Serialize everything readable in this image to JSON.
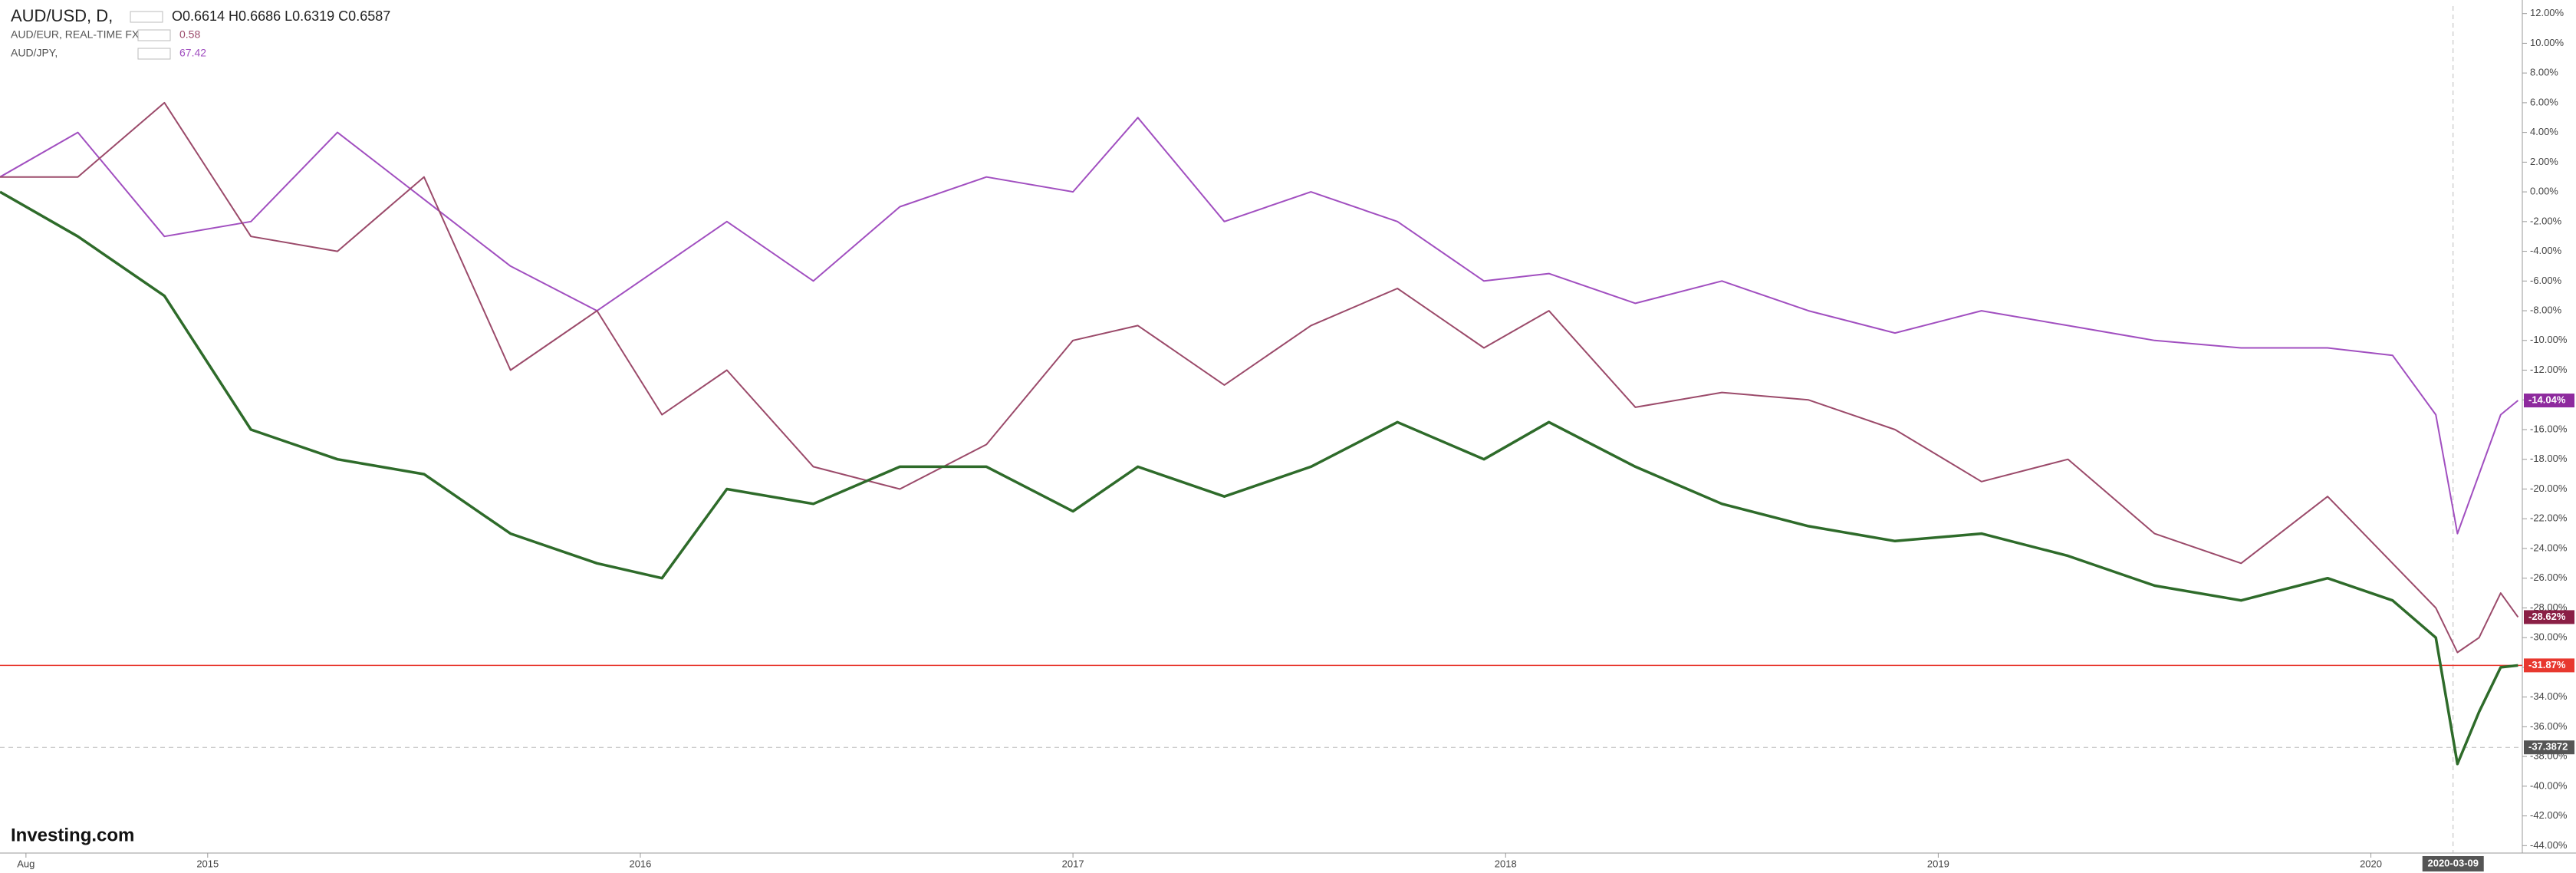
{
  "chart_data": {
    "type": "line",
    "x": [
      2014.52,
      2014.7,
      2014.9,
      2015.1,
      2015.3,
      2015.5,
      2015.7,
      2015.9,
      2016.05,
      2016.2,
      2016.4,
      2016.6,
      2016.8,
      2017.0,
      2017.15,
      2017.35,
      2017.55,
      2017.75,
      2017.95,
      2018.1,
      2018.3,
      2018.5,
      2018.7,
      2018.9,
      2019.1,
      2019.3,
      2019.5,
      2019.7,
      2019.9,
      2020.05,
      2020.15,
      2020.2,
      2020.25,
      2020.3,
      2020.34
    ],
    "series": [
      {
        "name": "AUD/USD, D,",
        "info": "O0.6614 H0.6686 L0.6319 C0.6587",
        "color": "#2e6b2a",
        "values": [
          0,
          -3,
          -7,
          -16,
          -18,
          -19,
          -23,
          -25,
          -26,
          -20,
          -21,
          -18.5,
          -18.5,
          -21.5,
          -18.5,
          -20.5,
          -18.5,
          -15.5,
          -18,
          -15.5,
          -18.5,
          -21,
          -22.5,
          -23.5,
          -23,
          -24.5,
          -26.5,
          -27.5,
          -26,
          -27.5,
          -30,
          -38.5,
          -35,
          -32,
          -31.87
        ]
      },
      {
        "name": "AUD/EUR, REAL-TIME FX",
        "info": "0.58",
        "color": "#9b4a6a",
        "values": [
          1,
          1,
          6,
          -3,
          -4,
          1,
          -12,
          -8,
          -15,
          -12,
          -18.5,
          -20,
          -17,
          -10,
          -9,
          -13,
          -9,
          -6.5,
          -10.5,
          -8,
          -14.5,
          -13.5,
          -14,
          -16,
          -19.5,
          -18,
          -23,
          -25,
          -20.5,
          -25,
          -28,
          -31,
          -30,
          -27,
          -28.62
        ]
      },
      {
        "name": "AUD/JPY,",
        "info": "67.42",
        "color": "#a14fc0",
        "values": [
          1,
          4,
          -3,
          -2,
          4,
          -0.5,
          -5,
          -8,
          -5,
          -2,
          -6,
          -1,
          1,
          0,
          5,
          -2,
          0,
          -2,
          -6,
          -5.5,
          -7.5,
          -6,
          -8,
          -9.5,
          -8,
          -9,
          -10,
          -10.5,
          -10.5,
          -11,
          -15,
          -23,
          -19,
          -15,
          -14.04
        ]
      }
    ],
    "xlim": [
      2014.52,
      2020.35
    ],
    "xticks": [
      {
        "value": 2014.58,
        "label": "Aug"
      },
      2015,
      2016,
      2017,
      2018,
      2019,
      2020
    ],
    "ylim": [
      -44.5,
      12.5
    ],
    "yticks": [
      {
        "value": 12,
        "label": "12.00%"
      },
      {
        "value": 10,
        "label": "10.00%"
      },
      {
        "value": 8,
        "label": "8.00%"
      },
      {
        "value": 6,
        "label": "6.00%"
      },
      {
        "value": 4,
        "label": "4.00%"
      },
      {
        "value": 2,
        "label": "2.00%"
      },
      {
        "value": 0,
        "label": "0.00%"
      },
      {
        "value": -2,
        "label": "-2.00%"
      },
      {
        "value": -4,
        "label": "-4.00%"
      },
      {
        "value": -6,
        "label": "-6.00%"
      },
      {
        "value": -8,
        "label": "-8.00%"
      },
      {
        "value": -10,
        "label": "-10.00%"
      },
      {
        "value": -12,
        "label": "-12.00%"
      },
      {
        "value": -14,
        "label": "-14.00%"
      },
      {
        "value": -16,
        "label": "-16.00%"
      },
      {
        "value": -18,
        "label": "-18.00%"
      },
      {
        "value": -20,
        "label": "-20.00%"
      },
      {
        "value": -22,
        "label": "-22.00%"
      },
      {
        "value": -24,
        "label": "-24.00%"
      },
      {
        "value": -26,
        "label": "-26.00%"
      },
      {
        "value": -28,
        "label": "-28.00%"
      },
      {
        "value": -30,
        "label": "-30.00%"
      },
      {
        "value": -32,
        "label": "-32.00%"
      },
      {
        "value": -34,
        "label": "-34.00%"
      },
      {
        "value": -36,
        "label": "-36.00%"
      },
      {
        "value": -38,
        "label": "-38.00%"
      },
      {
        "value": -40,
        "label": "-40.00%"
      },
      {
        "value": -42,
        "label": "-42.00%"
      },
      {
        "value": -44,
        "label": "-44.00%"
      }
    ],
    "price_tags": [
      {
        "value": -14.04,
        "label": "-14.04%",
        "color": "#8e2a9e"
      },
      {
        "value": -28.62,
        "label": "-28.62%",
        "color": "#8a1f45"
      },
      {
        "value": -31.87,
        "label": "-31.87%",
        "color": "#e8382f"
      }
    ],
    "price_line": {
      "value": -31.87,
      "color": "#e8382f"
    },
    "crosshair": {
      "y": {
        "value": -37.3872,
        "label": "-37.3872"
      },
      "x": {
        "value": 2020.19,
        "label": "2020-03-09"
      }
    },
    "logo": "Investing.com"
  }
}
